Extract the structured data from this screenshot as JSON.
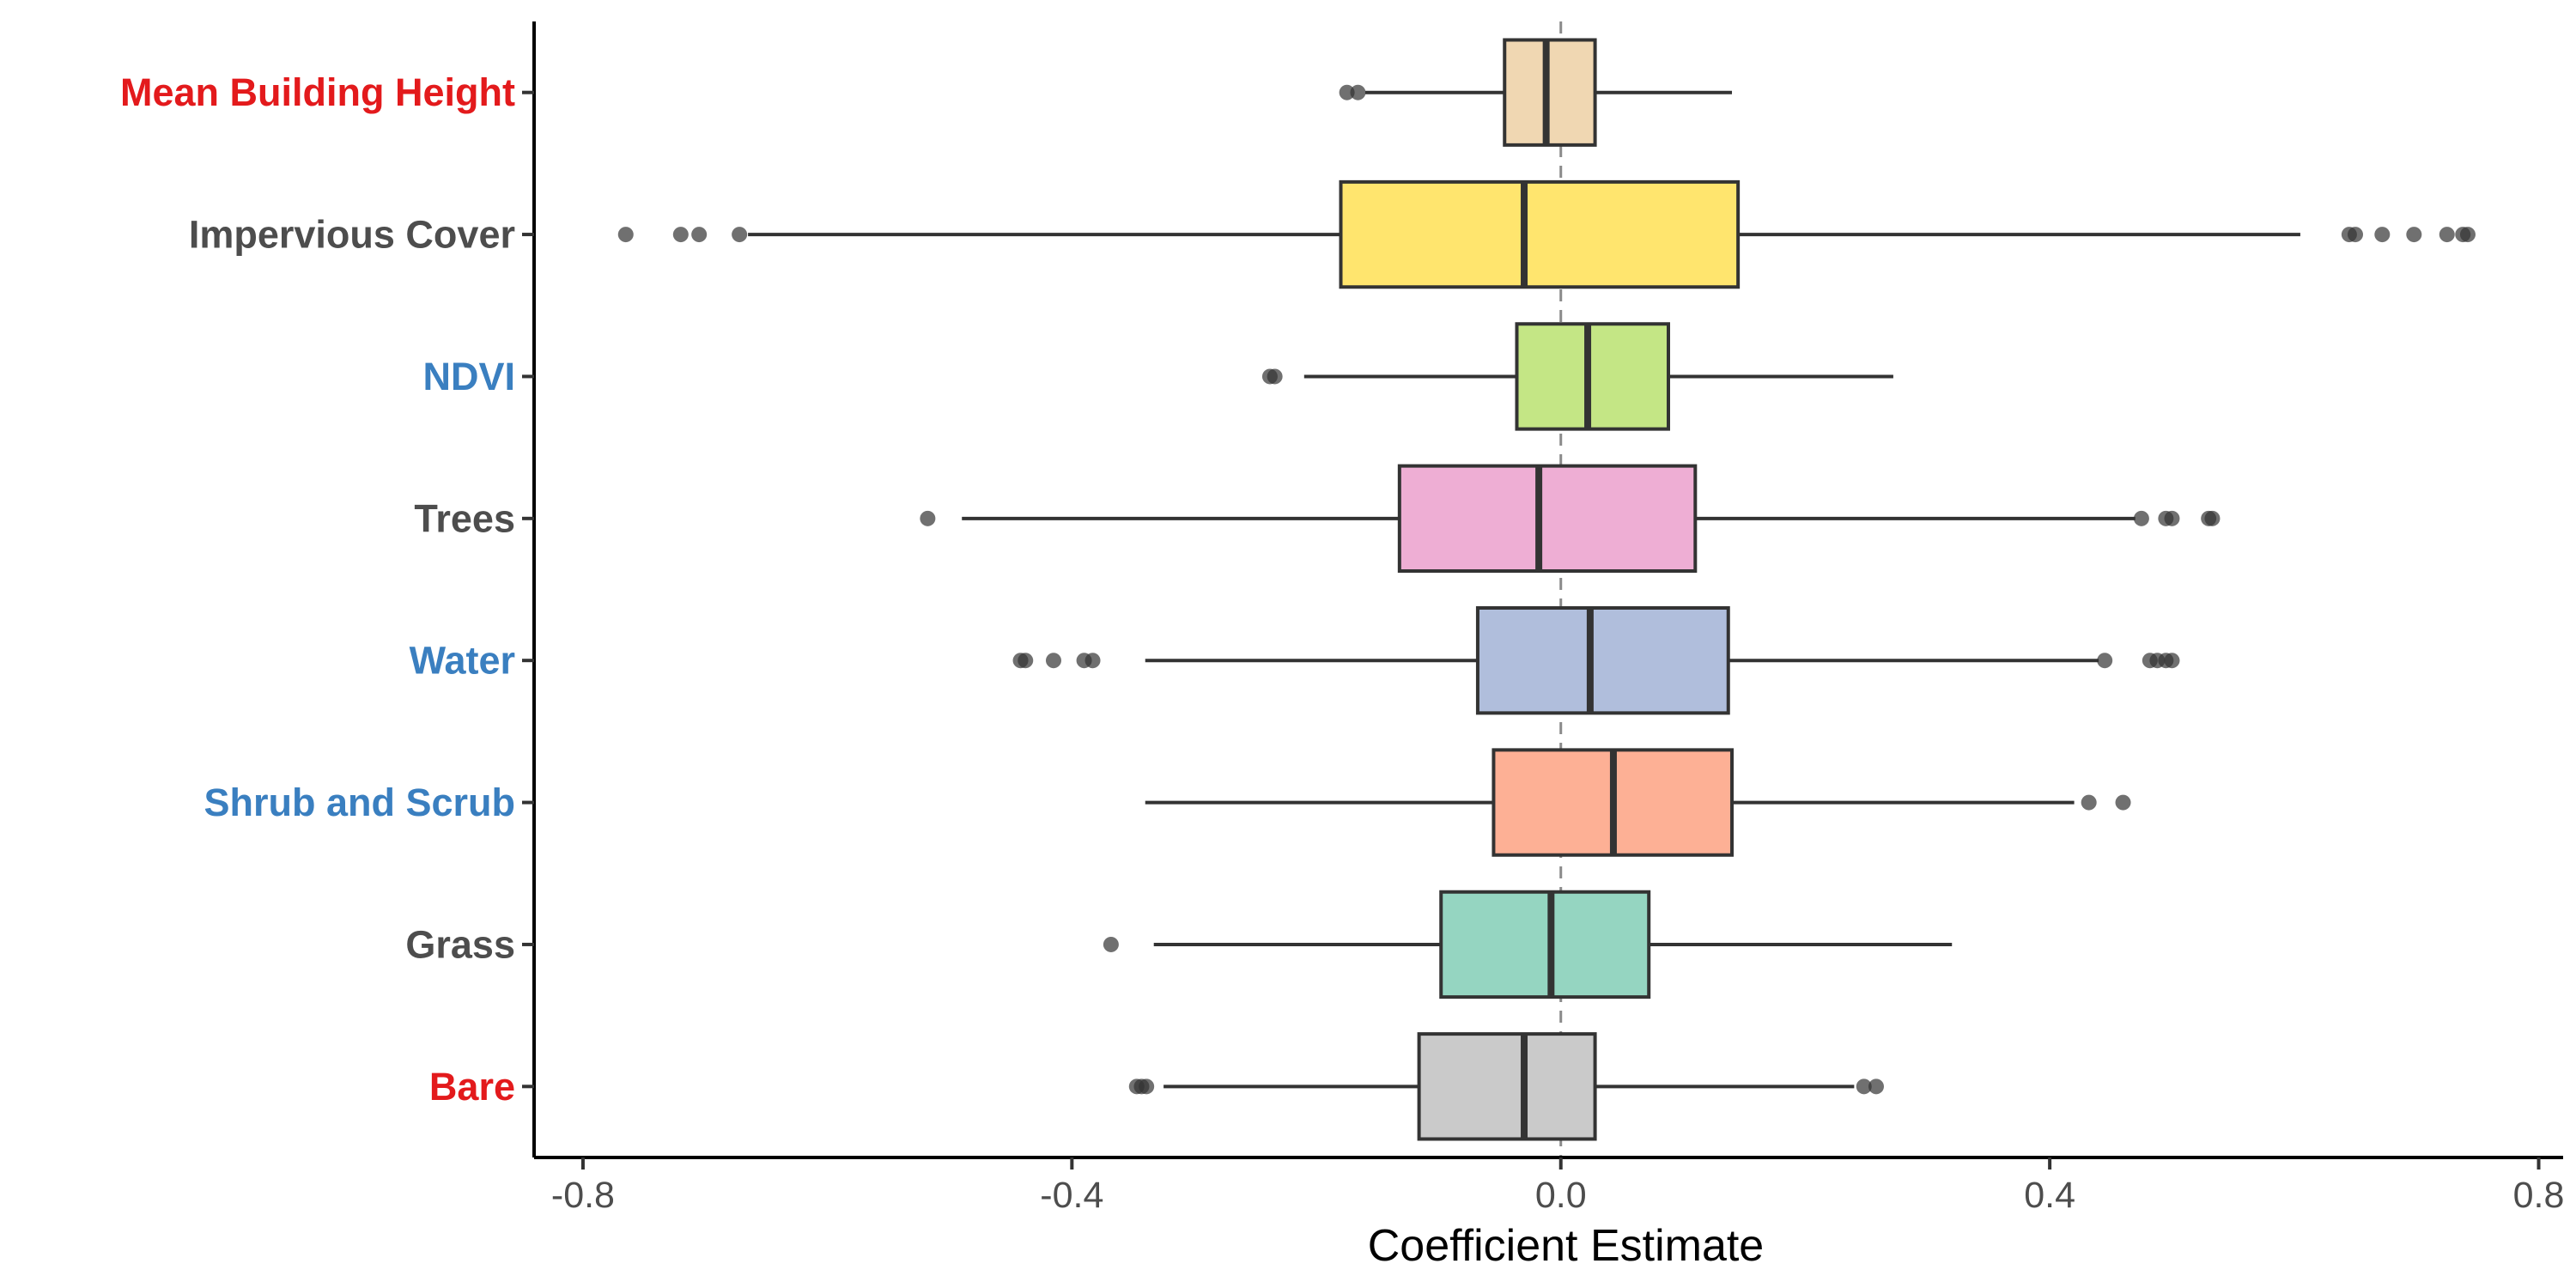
{
  "chart_data": {
    "type": "boxplot",
    "title": "",
    "xlabel": "Coefficient Estimate",
    "ylabel": "",
    "xlim": [
      -0.84,
      0.82
    ],
    "xticks": [
      -0.8,
      -0.4,
      0.0,
      0.4,
      0.8
    ],
    "xtick_labels": [
      "-0.8",
      "-0.4",
      "0.0",
      "0.4",
      "0.8"
    ],
    "reference_line": {
      "x": 0.0,
      "style": "dashed"
    },
    "grid": false,
    "legend": "none",
    "categories": [
      {
        "label": "Mean Building Height",
        "label_color": "#e31a1c",
        "fill": "#f0d7b2",
        "whisker_low": -0.16,
        "q1": -0.046,
        "median": -0.012,
        "q3": 0.028,
        "whisker_high": 0.14,
        "outliers": [
          -0.175,
          -0.166
        ]
      },
      {
        "label": "Impervious Cover",
        "label_color": "#4d4d4d",
        "fill": "#ffe56e",
        "whisker_low": -0.665,
        "q1": -0.18,
        "median": -0.03,
        "q3": 0.145,
        "whisker_high": 0.605,
        "outliers": [
          -0.765,
          -0.72,
          -0.705,
          -0.672,
          0.645,
          0.65,
          0.672,
          0.698,
          0.725,
          0.738,
          0.742
        ]
      },
      {
        "label": "NDVI",
        "label_color": "#3a7fc0",
        "fill": "#c4e685",
        "whisker_low": -0.21,
        "q1": -0.036,
        "median": 0.022,
        "q3": 0.088,
        "whisker_high": 0.272,
        "outliers": [
          -0.238,
          -0.234
        ]
      },
      {
        "label": "Trees",
        "label_color": "#4d4d4d",
        "fill": "#eeaed4",
        "whisker_low": -0.49,
        "q1": -0.132,
        "median": -0.018,
        "q3": 0.11,
        "whisker_high": 0.47,
        "outliers": [
          -0.518,
          0.475,
          0.495,
          0.5,
          0.53,
          0.533
        ]
      },
      {
        "label": "Water",
        "label_color": "#3a7fc0",
        "fill": "#b0bedc",
        "whisker_low": -0.34,
        "q1": -0.068,
        "median": 0.024,
        "q3": 0.137,
        "whisker_high": 0.44,
        "outliers": [
          -0.442,
          -0.438,
          -0.415,
          -0.39,
          -0.383,
          0.445,
          0.482,
          0.488,
          0.495,
          0.5
        ]
      },
      {
        "label": "Shrub and Scrub",
        "label_color": "#3a7fc0",
        "fill": "#fdb095",
        "whisker_low": -0.34,
        "q1": -0.055,
        "median": 0.043,
        "q3": 0.14,
        "whisker_high": 0.42,
        "outliers": [
          0.432,
          0.46
        ]
      },
      {
        "label": "Grass",
        "label_color": "#4d4d4d",
        "fill": "#95d5c1",
        "whisker_low": -0.333,
        "q1": -0.098,
        "median": -0.008,
        "q3": 0.072,
        "whisker_high": 0.32,
        "outliers": [
          -0.368
        ]
      },
      {
        "label": "Bare",
        "label_color": "#e31a1c",
        "fill": "#cacaca",
        "whisker_low": -0.325,
        "q1": -0.116,
        "median": -0.03,
        "q3": 0.028,
        "whisker_high": 0.24,
        "outliers": [
          -0.347,
          -0.343,
          -0.339,
          0.248,
          0.258
        ]
      }
    ]
  }
}
